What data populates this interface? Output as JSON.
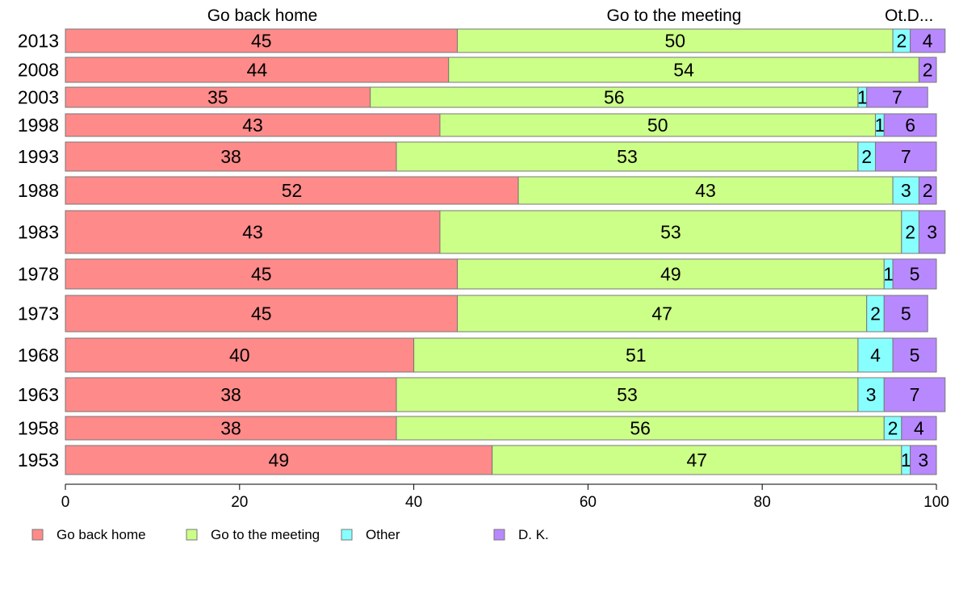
{
  "chart_data": {
    "type": "bar",
    "orientation": "horizontal",
    "stacked": true,
    "categories": [
      "2013",
      "2008",
      "2003",
      "1998",
      "1993",
      "1988",
      "1983",
      "1978",
      "1973",
      "1968",
      "1963",
      "1958",
      "1953"
    ],
    "series": [
      {
        "name": "Go back home",
        "color": "#ff8a8a",
        "values": [
          45,
          44,
          35,
          43,
          38,
          52,
          43,
          45,
          45,
          40,
          38,
          38,
          49
        ]
      },
      {
        "name": "Go to the meeting",
        "color": "#ccff88",
        "values": [
          50,
          54,
          56,
          50,
          53,
          43,
          53,
          49,
          47,
          51,
          53,
          56,
          47
        ]
      },
      {
        "name": "Other",
        "color": "#88ffff",
        "values": [
          2,
          0,
          1,
          1,
          2,
          3,
          2,
          1,
          2,
          4,
          3,
          2,
          1
        ]
      },
      {
        "name": "D. K.",
        "color": "#b888ff",
        "values": [
          4,
          2,
          7,
          6,
          7,
          2,
          3,
          5,
          5,
          5,
          7,
          4,
          3
        ]
      }
    ],
    "column_headers": [
      "Go back home",
      "Go to the meeting",
      "Ot.",
      "D..."
    ],
    "xlim": [
      0,
      100
    ],
    "xticks": [
      0,
      20,
      40,
      60,
      80,
      100
    ],
    "legend_position": "bottom-left",
    "grid": false
  }
}
